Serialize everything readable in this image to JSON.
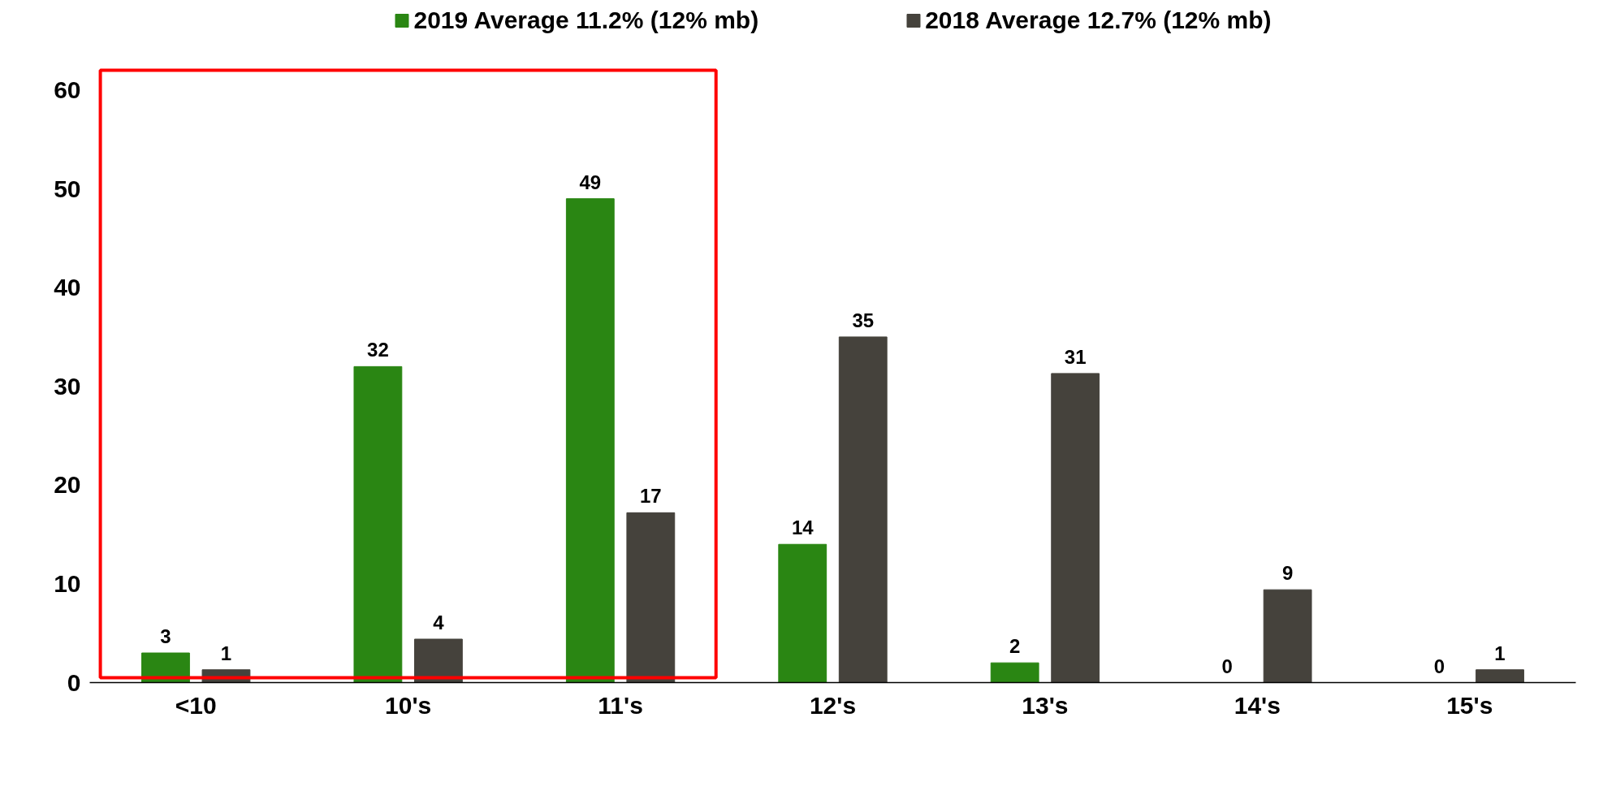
{
  "chart_data": {
    "type": "bar",
    "categories": [
      "<10",
      "10's",
      "11's",
      "12's",
      "13's",
      "14's",
      "15's"
    ],
    "series": [
      {
        "name": "2019 Average 11.2% (12% mb)",
        "color": "#2a8613",
        "values": [
          3,
          32,
          49,
          14,
          2,
          0,
          0
        ],
        "value_labels": [
          "3",
          "32",
          "49",
          "14",
          "2",
          "0",
          "0"
        ]
      },
      {
        "name": "2018 Average 12.7% (12% mb)",
        "color": "#45423c",
        "values": [
          1.3,
          4.4,
          17.2,
          35,
          31.3,
          9.4,
          1.3
        ],
        "value_labels": [
          "1",
          "4",
          "17",
          "35",
          "31",
          "9",
          "1"
        ]
      }
    ],
    "ylim": [
      0,
      62.5
    ],
    "yticks": [
      0,
      10,
      20,
      30,
      40,
      50,
      60
    ],
    "grid": false,
    "legend": "top"
  }
}
